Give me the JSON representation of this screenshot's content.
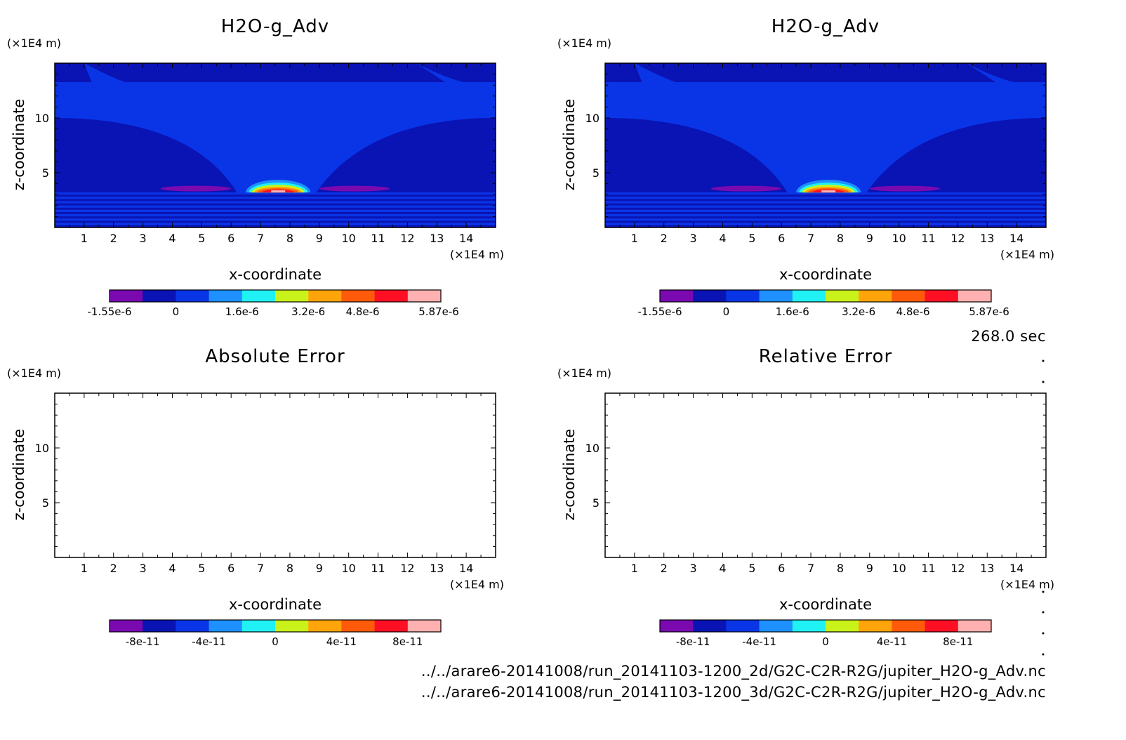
{
  "chart_data": [
    {
      "type": "contour",
      "title": "H2O-g_Adv",
      "xlabel": "x-coordinate",
      "ylabel": "z-coordinate",
      "x_unit": "(×1E4 m)",
      "y_unit": "(×1E4 m)",
      "xlim": [
        0,
        15
      ],
      "ylim": [
        0,
        15
      ],
      "x_ticks": [
        "1",
        "2",
        "3",
        "4",
        "5",
        "6",
        "7",
        "8",
        "9",
        "10",
        "11",
        "12",
        "13",
        "14"
      ],
      "y_ticks": [
        "5",
        "10"
      ],
      "colorbar": {
        "labels": [
          "-1.55e-6",
          "0",
          "1.6e-6",
          "3.2e-6",
          "4.8e-6",
          "5.87e-6"
        ],
        "colors": [
          "#7a0ab0",
          "#0a13b4",
          "#0a35e6",
          "#1e90ff",
          "#1ff1f4",
          "#c9f21a",
          "#ffa40a",
          "#ff5a0a",
          "#ff0f24",
          "#ffb0b0"
        ]
      },
      "field": "plume"
    },
    {
      "type": "contour",
      "title": "H2O-g_Adv",
      "xlabel": "x-coordinate",
      "ylabel": "z-coordinate",
      "x_unit": "(×1E4 m)",
      "y_unit": "(×1E4 m)",
      "xlim": [
        0,
        15
      ],
      "ylim": [
        0,
        15
      ],
      "x_ticks": [
        "1",
        "2",
        "3",
        "4",
        "5",
        "6",
        "7",
        "8",
        "9",
        "10",
        "11",
        "12",
        "13",
        "14"
      ],
      "y_ticks": [
        "5",
        "10"
      ],
      "colorbar": {
        "labels": [
          "-1.55e-6",
          "0",
          "1.6e-6",
          "3.2e-6",
          "4.8e-6",
          "5.87e-6"
        ],
        "colors": [
          "#7a0ab0",
          "#0a13b4",
          "#0a35e6",
          "#1e90ff",
          "#1ff1f4",
          "#c9f21a",
          "#ffa40a",
          "#ff5a0a",
          "#ff0f24",
          "#ffb0b0"
        ]
      },
      "field": "plume"
    },
    {
      "type": "contour",
      "title": "Absolute Error",
      "xlabel": "x-coordinate",
      "ylabel": "z-coordinate",
      "x_unit": "(×1E4 m)",
      "y_unit": "(×1E4 m)",
      "xlim": [
        0,
        15
      ],
      "ylim": [
        0,
        15
      ],
      "x_ticks": [
        "1",
        "2",
        "3",
        "4",
        "5",
        "6",
        "7",
        "8",
        "9",
        "10",
        "11",
        "12",
        "13",
        "14"
      ],
      "y_ticks": [
        "5",
        "10"
      ],
      "colorbar": {
        "labels": [
          "-8e-11",
          "-4e-11",
          "0",
          "4e-11",
          "8e-11"
        ],
        "colors": [
          "#7a0ab0",
          "#0a13b4",
          "#0a35e6",
          "#1e90ff",
          "#1ff1f4",
          "#c9f21a",
          "#ffa40a",
          "#ff5a0a",
          "#ff0f24",
          "#ffb0b0"
        ]
      },
      "field": "empty"
    },
    {
      "type": "contour",
      "title": "Relative Error",
      "xlabel": "x-coordinate",
      "ylabel": "z-coordinate",
      "x_unit": "(×1E4 m)",
      "y_unit": "(×1E4 m)",
      "xlim": [
        0,
        15
      ],
      "ylim": [
        0,
        15
      ],
      "x_ticks": [
        "1",
        "2",
        "3",
        "4",
        "5",
        "6",
        "7",
        "8",
        "9",
        "10",
        "11",
        "12",
        "13",
        "14"
      ],
      "y_ticks": [
        "5",
        "10"
      ],
      "colorbar": {
        "labels": [
          "-8e-11",
          "-4e-11",
          "0",
          "4e-11",
          "8e-11"
        ],
        "colors": [
          "#7a0ab0",
          "#0a13b4",
          "#0a35e6",
          "#1e90ff",
          "#1ff1f4",
          "#c9f21a",
          "#ffa40a",
          "#ff5a0a",
          "#ff0f24",
          "#ffb0b0"
        ]
      },
      "field": "empty"
    }
  ],
  "time_label": "268.0 sec",
  "file_paths": [
    "../../arare6-20141008/run_20141103-1200_2d/G2C-C2R-R2G/jupiter_H2O-g_Adv.nc",
    "../../arare6-20141008/run_20141103-1200_3d/G2C-C2R-R2G/jupiter_H2O-g_Adv.nc"
  ]
}
